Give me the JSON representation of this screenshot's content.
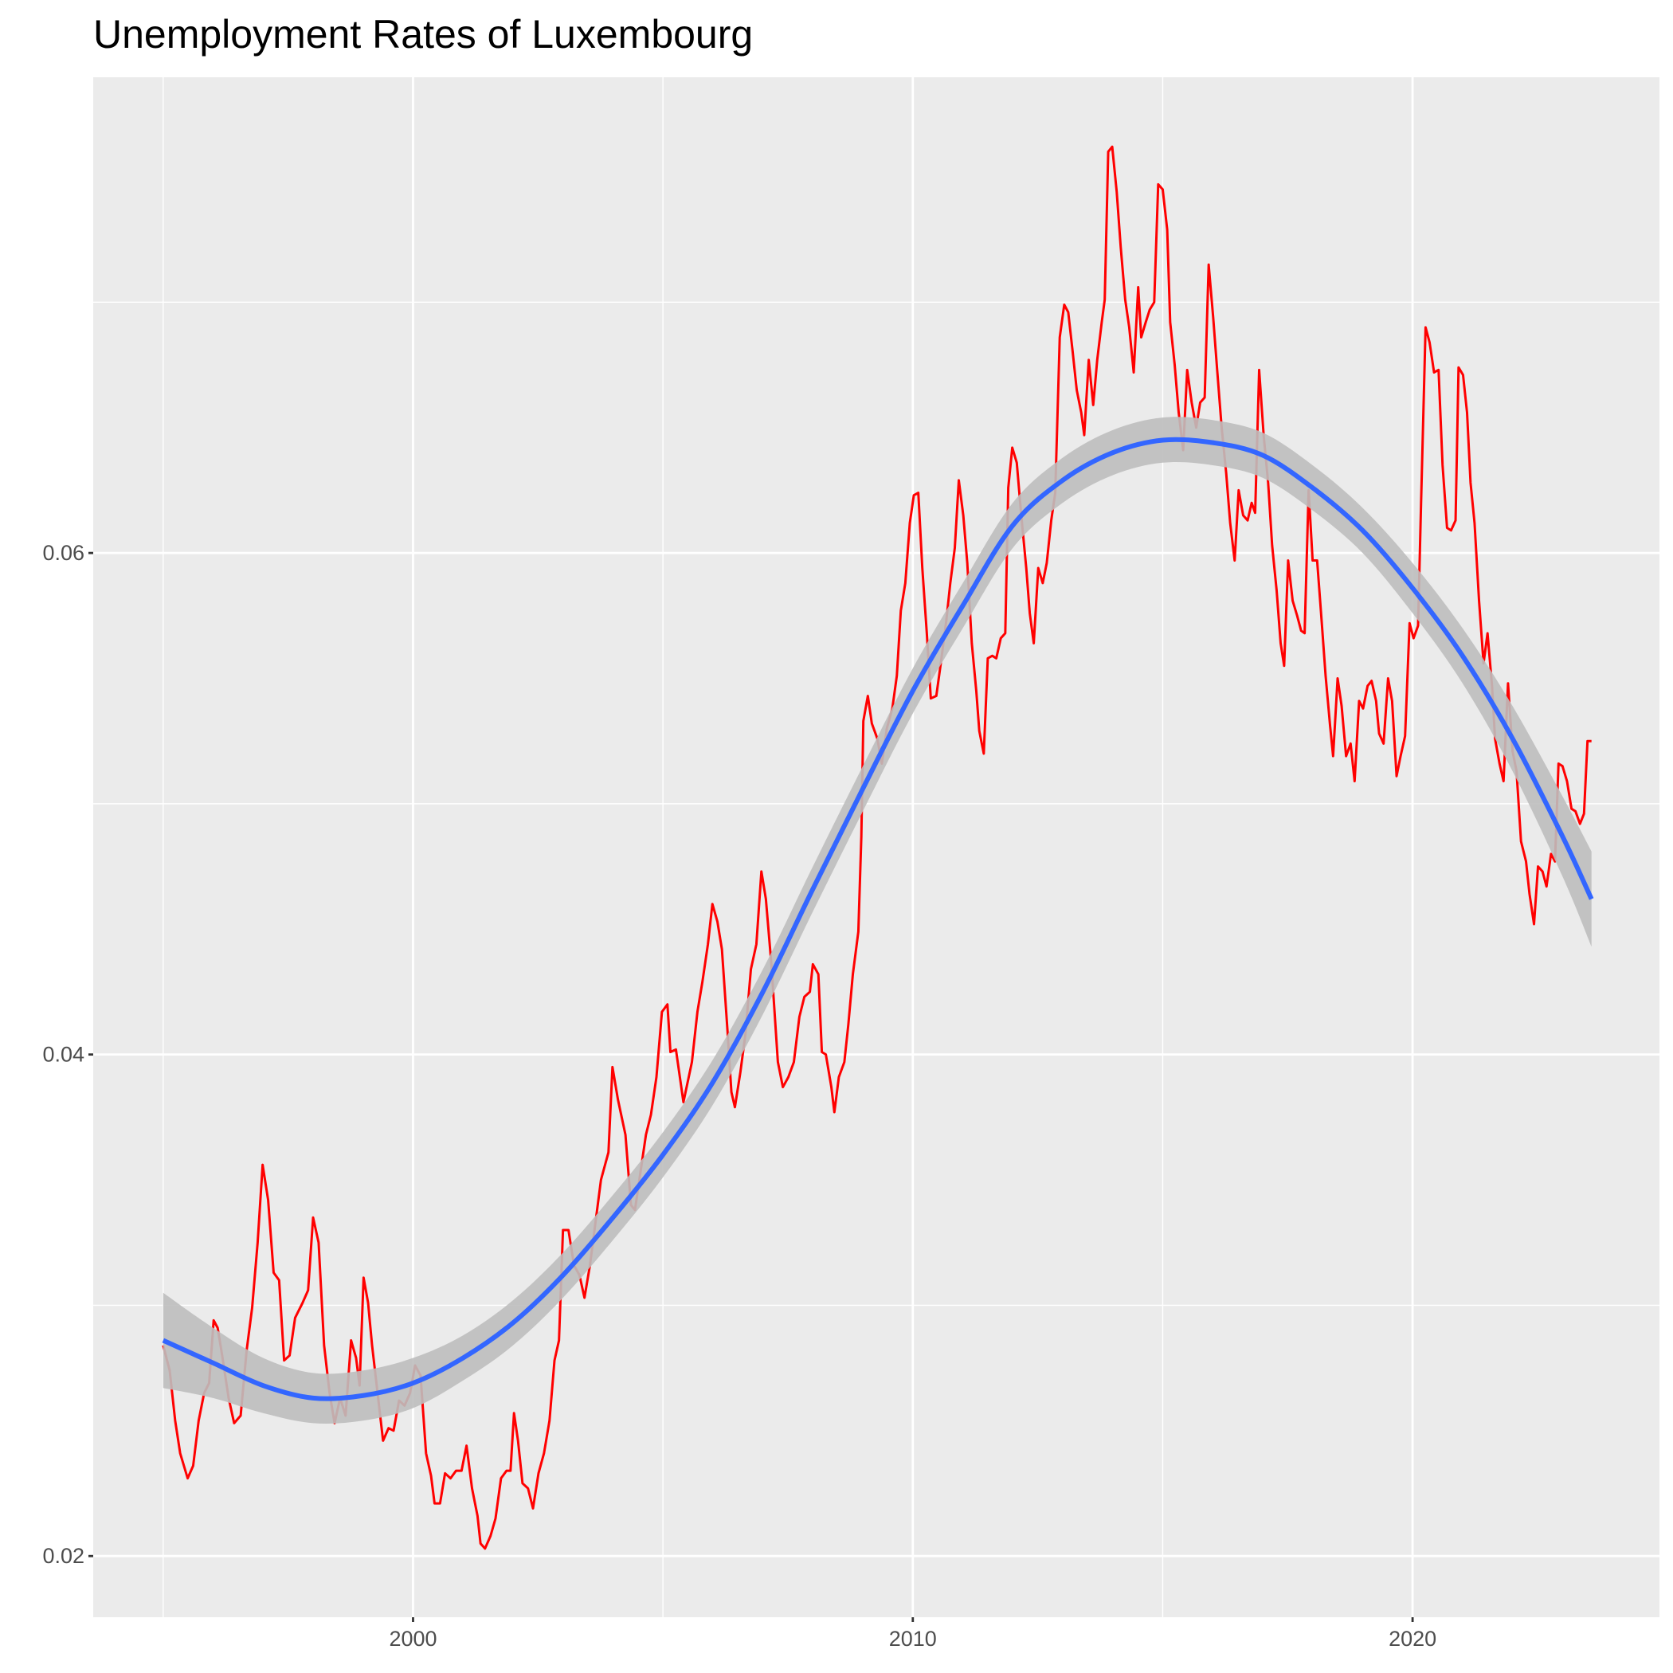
{
  "chart_data": {
    "type": "line",
    "title": "Unemployment Rates of Luxembourg",
    "color": "#ff0000",
    "x": [
      1995.0,
      1995.13,
      1995.24,
      1995.34,
      1995.49,
      1995.6,
      1995.71,
      1995.82,
      1995.92,
      1996.01,
      1996.09,
      1996.18,
      1996.31,
      1996.42,
      1996.55,
      1996.67,
      1996.78,
      1996.89,
      1996.99,
      1997.1,
      1997.21,
      1997.32,
      1997.42,
      1997.53,
      1997.64,
      1997.79,
      1997.9,
      1998.0,
      1998.11,
      1998.22,
      1998.33,
      1998.43,
      1998.54,
      1998.65,
      1998.76,
      1998.86,
      1998.93,
      1999.01,
      1999.1,
      1999.18,
      1999.29,
      1999.4,
      1999.51,
      1999.61,
      1999.72,
      1999.83,
      1999.94,
      2000.04,
      2000.15,
      2000.26,
      2000.36,
      2000.43,
      2000.54,
      2000.64,
      2000.75,
      2000.86,
      2000.97,
      2001.07,
      2001.18,
      2001.29,
      2001.35,
      2001.44,
      2001.55,
      2001.65,
      2001.76,
      2001.87,
      2001.95,
      2002.02,
      2002.1,
      2002.19,
      2002.3,
      2002.4,
      2002.51,
      2002.62,
      2002.73,
      2002.83,
      2002.92,
      2003.0,
      2003.11,
      2003.22,
      2003.33,
      2003.43,
      2003.54,
      2003.65,
      2003.76,
      2003.91,
      2003.99,
      2004.1,
      2004.25,
      2004.36,
      2004.44,
      2004.55,
      2004.66,
      2004.76,
      2004.87,
      2004.98,
      2005.09,
      2005.15,
      2005.26,
      2005.41,
      2005.58,
      2005.69,
      2005.79,
      2005.9,
      2005.99,
      2006.09,
      2006.18,
      2006.29,
      2006.37,
      2006.44,
      2006.55,
      2006.65,
      2006.76,
      2006.87,
      2006.97,
      2007.06,
      2007.17,
      2007.3,
      2007.4,
      2007.51,
      2007.62,
      2007.73,
      2007.83,
      2007.94,
      2008.0,
      2008.11,
      2008.18,
      2008.26,
      2008.37,
      2008.43,
      2008.52,
      2008.63,
      2008.71,
      2008.8,
      2008.91,
      2008.97,
      2009.01,
      2009.1,
      2009.18,
      2009.29,
      2009.38,
      2009.48,
      2009.59,
      2009.68,
      2009.76,
      2009.85,
      2009.94,
      2010.02,
      2010.11,
      2010.19,
      2010.28,
      2010.36,
      2010.47,
      2010.56,
      2010.67,
      2010.75,
      2010.84,
      2010.92,
      2011.01,
      2011.09,
      2011.18,
      2011.27,
      2011.33,
      2011.42,
      2011.5,
      2011.59,
      2011.67,
      2011.76,
      2011.85,
      2011.91,
      2011.99,
      2012.08,
      2012.17,
      2012.27,
      2012.34,
      2012.42,
      2012.51,
      2012.6,
      2012.68,
      2012.77,
      2012.85,
      2012.94,
      2013.03,
      2013.11,
      2013.2,
      2013.28,
      2013.37,
      2013.43,
      2013.52,
      2013.61,
      2013.69,
      2013.78,
      2013.84,
      2013.91,
      2013.99,
      2014.08,
      2014.16,
      2014.25,
      2014.33,
      2014.42,
      2014.51,
      2014.57,
      2014.66,
      2014.74,
      2014.83,
      2014.91,
      2015.0,
      2015.09,
      2015.15,
      2015.24,
      2015.32,
      2015.41,
      2015.49,
      2015.58,
      2015.67,
      2015.75,
      2015.84,
      2015.92,
      2016.01,
      2016.09,
      2016.18,
      2016.27,
      2016.35,
      2016.44,
      2016.52,
      2016.61,
      2016.7,
      2016.78,
      2016.85,
      2016.93,
      2017.02,
      2017.11,
      2017.19,
      2017.28,
      2017.36,
      2017.43,
      2017.51,
      2017.6,
      2017.69,
      2017.77,
      2017.84,
      2017.92,
      2018.0,
      2018.09,
      2018.18,
      2018.26,
      2018.35,
      2018.41,
      2018.5,
      2018.58,
      2018.67,
      2018.76,
      2018.84,
      2018.93,
      2019.01,
      2019.1,
      2019.18,
      2019.27,
      2019.33,
      2019.42,
      2019.51,
      2019.59,
      2019.68,
      2019.76,
      2019.85,
      2019.94,
      2020.02,
      2020.11,
      2020.17,
      2020.26,
      2020.34,
      2020.43,
      2020.52,
      2020.6,
      2020.69,
      2020.77,
      2020.86,
      2020.92,
      2021.01,
      2021.09,
      2021.16,
      2021.24,
      2021.33,
      2021.42,
      2021.5,
      2021.59,
      2021.65,
      2021.74,
      2021.82,
      2021.91,
      2022.0,
      2022.08,
      2022.17,
      2022.27,
      2022.34,
      2022.43,
      2022.51,
      2022.6,
      2022.68,
      2022.77,
      2022.85,
      2022.92,
      2023.0,
      2023.09,
      2023.18,
      2023.26,
      2023.35,
      2023.43,
      2023.5,
      2023.58
    ],
    "values": [
      0.0284,
      0.0274,
      0.0254,
      0.0241,
      0.0231,
      0.0236,
      0.0254,
      0.0265,
      0.0269,
      0.0294,
      0.0291,
      0.028,
      0.0263,
      0.0253,
      0.0256,
      0.0282,
      0.0299,
      0.0325,
      0.0356,
      0.0342,
      0.0313,
      0.031,
      0.0278,
      0.028,
      0.0295,
      0.0301,
      0.0306,
      0.0335,
      0.0325,
      0.0284,
      0.0265,
      0.0253,
      0.0263,
      0.0256,
      0.0286,
      0.0279,
      0.0268,
      0.0311,
      0.0301,
      0.0284,
      0.0265,
      0.0246,
      0.0251,
      0.025,
      0.0262,
      0.026,
      0.0265,
      0.0276,
      0.0272,
      0.0241,
      0.0232,
      0.0221,
      0.0221,
      0.0233,
      0.0231,
      0.0234,
      0.0234,
      0.0244,
      0.0227,
      0.0216,
      0.0205,
      0.0203,
      0.0208,
      0.0215,
      0.0231,
      0.0234,
      0.0234,
      0.0257,
      0.0246,
      0.0229,
      0.0227,
      0.0219,
      0.0233,
      0.0241,
      0.0254,
      0.0278,
      0.0286,
      0.033,
      0.033,
      0.0316,
      0.0312,
      0.0303,
      0.0316,
      0.0333,
      0.035,
      0.0361,
      0.0395,
      0.0382,
      0.0368,
      0.034,
      0.0338,
      0.0353,
      0.0368,
      0.0376,
      0.0391,
      0.0417,
      0.042,
      0.0401,
      0.0402,
      0.0381,
      0.0397,
      0.0417,
      0.0429,
      0.0444,
      0.046,
      0.0453,
      0.0442,
      0.041,
      0.0385,
      0.0379,
      0.0393,
      0.0408,
      0.0434,
      0.0444,
      0.0473,
      0.0462,
      0.0436,
      0.0397,
      0.0387,
      0.0391,
      0.0397,
      0.0415,
      0.0423,
      0.0425,
      0.0436,
      0.0432,
      0.0401,
      0.04,
      0.0387,
      0.0377,
      0.0391,
      0.0397,
      0.0412,
      0.0432,
      0.0449,
      0.0487,
      0.0533,
      0.0543,
      0.0532,
      0.0526,
      0.0516,
      0.053,
      0.0538,
      0.0551,
      0.0577,
      0.0588,
      0.0612,
      0.0623,
      0.0624,
      0.0594,
      0.0568,
      0.0542,
      0.0543,
      0.0556,
      0.0573,
      0.0588,
      0.0602,
      0.0629,
      0.0615,
      0.0596,
      0.0564,
      0.0545,
      0.0529,
      0.052,
      0.0558,
      0.0559,
      0.0558,
      0.0566,
      0.0568,
      0.0626,
      0.0642,
      0.0636,
      0.0615,
      0.0594,
      0.0576,
      0.0564,
      0.0594,
      0.0588,
      0.0596,
      0.0613,
      0.0624,
      0.0686,
      0.0699,
      0.0696,
      0.068,
      0.0665,
      0.0656,
      0.0647,
      0.0677,
      0.0659,
      0.0677,
      0.0692,
      0.0701,
      0.076,
      0.0762,
      0.0744,
      0.0722,
      0.0701,
      0.069,
      0.0672,
      0.0706,
      0.0686,
      0.0692,
      0.0697,
      0.07,
      0.0747,
      0.0745,
      0.0729,
      0.0692,
      0.0675,
      0.0656,
      0.0641,
      0.0673,
      0.066,
      0.065,
      0.066,
      0.0662,
      0.0715,
      0.0694,
      0.0673,
      0.065,
      0.0632,
      0.0612,
      0.0597,
      0.0625,
      0.0615,
      0.0613,
      0.062,
      0.0616,
      0.0673,
      0.0647,
      0.0628,
      0.0603,
      0.0585,
      0.0564,
      0.0555,
      0.0597,
      0.0581,
      0.0575,
      0.0569,
      0.0568,
      0.0625,
      0.0597,
      0.0597,
      0.0573,
      0.0551,
      0.0531,
      0.0519,
      0.055,
      0.0539,
      0.0519,
      0.0524,
      0.0509,
      0.0541,
      0.0538,
      0.0547,
      0.0549,
      0.0541,
      0.0528,
      0.0524,
      0.055,
      0.0541,
      0.0511,
      0.0519,
      0.0527,
      0.0572,
      0.0566,
      0.0571,
      0.062,
      0.069,
      0.0684,
      0.0672,
      0.0673,
      0.0635,
      0.061,
      0.0609,
      0.0613,
      0.0674,
      0.0671,
      0.0656,
      0.0628,
      0.0612,
      0.0581,
      0.0556,
      0.0568,
      0.0547,
      0.0526,
      0.0516,
      0.0509,
      0.0548,
      0.0521,
      0.0513,
      0.0485,
      0.0477,
      0.0464,
      0.0452,
      0.0475,
      0.0473,
      0.0467,
      0.048,
      0.0477,
      0.0516,
      0.0515,
      0.0509,
      0.0498,
      0.0497,
      0.0492,
      0.0496,
      0.0525,
      0.0525
    ],
    "smooth": {
      "color": "#3366ff",
      "band_color": "#bebebe",
      "x": [
        1995,
        1996,
        1997,
        1998,
        1999,
        2000,
        2001,
        2002,
        2003,
        2004,
        2005,
        2006,
        2007,
        2008,
        2009,
        2010,
        2011,
        2012,
        2013,
        2014,
        2015,
        2016,
        2017,
        2018,
        2019,
        2020,
        2021,
        2022,
        2023,
        2023.58
      ],
      "values": [
        0.0286,
        0.0277,
        0.0268,
        0.0263,
        0.0264,
        0.0269,
        0.0279,
        0.0293,
        0.0312,
        0.0335,
        0.036,
        0.0389,
        0.0425,
        0.0466,
        0.0506,
        0.0545,
        0.0579,
        0.0611,
        0.0629,
        0.064,
        0.0645,
        0.0644,
        0.0639,
        0.0626,
        0.0609,
        0.0586,
        0.0559,
        0.0526,
        0.0487,
        0.0462
      ],
      "lower": [
        0.0267,
        0.0263,
        0.0257,
        0.0253,
        0.0254,
        0.0259,
        0.027,
        0.0284,
        0.0303,
        0.0326,
        0.0351,
        0.038,
        0.0416,
        0.0457,
        0.0497,
        0.0536,
        0.057,
        0.0602,
        0.062,
        0.0631,
        0.0636,
        0.0635,
        0.063,
        0.0617,
        0.06,
        0.0576,
        0.0548,
        0.0513,
        0.0471,
        0.0443
      ],
      "upper": [
        0.0305,
        0.0291,
        0.0279,
        0.0273,
        0.0274,
        0.0279,
        0.0288,
        0.0302,
        0.0321,
        0.0344,
        0.0369,
        0.0398,
        0.0434,
        0.0475,
        0.0515,
        0.0554,
        0.0588,
        0.062,
        0.0638,
        0.0649,
        0.0654,
        0.0653,
        0.0648,
        0.0635,
        0.0618,
        0.0596,
        0.057,
        0.0539,
        0.0503,
        0.0481
      ]
    },
    "xlim": [
      1993.6,
      2024.94
    ],
    "ylim": [
      0.01756,
      0.07897
    ],
    "xticks": [
      2000,
      2010,
      2020
    ],
    "yticks": [
      0.02,
      0.04,
      0.06
    ],
    "x_minor_ticks": [
      1995,
      2005,
      2015
    ],
    "y_minor_ticks": [
      0.03,
      0.05,
      0.07
    ],
    "grid": true
  }
}
